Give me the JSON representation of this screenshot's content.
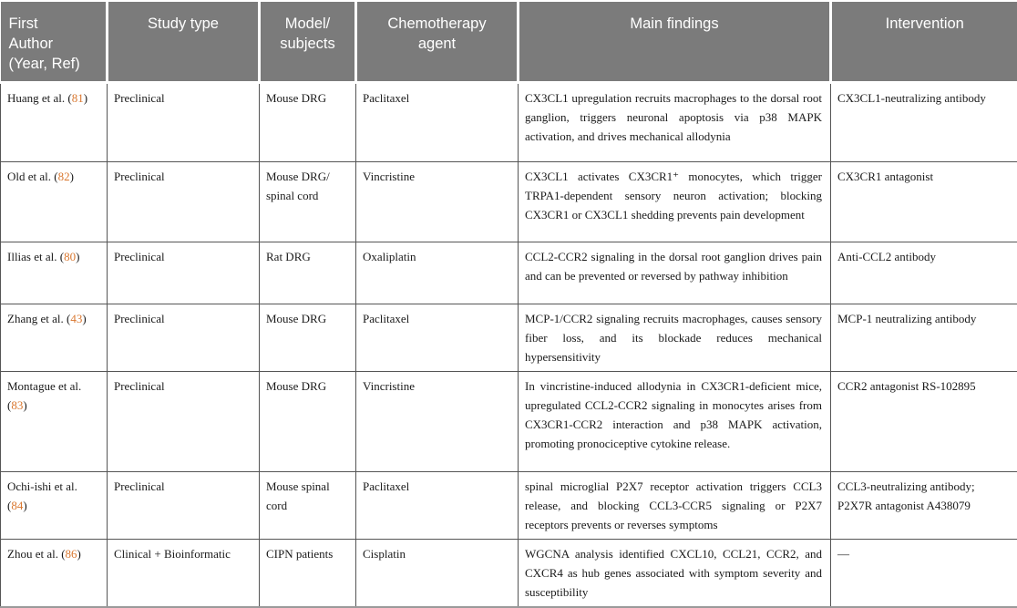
{
  "colors": {
    "header_bg": "#7B7B7B",
    "header_text": "#FFFFFF",
    "ref_accent": "#D9772F",
    "grid_border": "#555555",
    "outer_border": "#9A9A9A"
  },
  "table": {
    "columns": [
      {
        "label": "First\nAuthor\n(Year, Ref)"
      },
      {
        "label": "Study type"
      },
      {
        "label": "Model/\nsubjects"
      },
      {
        "label": "Chemotherapy\nagent"
      },
      {
        "label": "Main findings"
      },
      {
        "label": "Intervention"
      }
    ],
    "rows": [
      {
        "author_prefix": "Huang et al. (",
        "ref": "81",
        "author_suffix": ")",
        "study_type": "Preclinical",
        "model": "Mouse DRG",
        "agent": "Paclitaxel",
        "findings": "CX3CL1 upregulation recruits macrophages to the dorsal root ganglion, triggers neuronal apoptosis via p38 MAPK activation, and drives mechanical allodynia",
        "intervention": "CX3CL1-neutralizing antibody"
      },
      {
        "author_prefix": "Old et al. (",
        "ref": "82",
        "author_suffix": ")",
        "study_type": "Preclinical",
        "model": "Mouse DRG/ spinal cord",
        "agent": "Vincristine",
        "findings": "CX3CL1 activates CX3CR1⁺ monocytes, which trigger TRPA1-dependent sensory neuron activation; blocking CX3CR1 or CX3CL1 shedding prevents pain development",
        "intervention": "CX3CR1 antagonist"
      },
      {
        "author_prefix": "Illias et al. (",
        "ref": "80",
        "author_suffix": ")",
        "study_type": "Preclinical",
        "model": "Rat DRG",
        "agent": "Oxaliplatin",
        "findings": "CCL2-CCR2 signaling in the dorsal root ganglion drives pain and can be prevented or reversed by pathway inhibition",
        "intervention": "Anti-CCL2 antibody"
      },
      {
        "author_prefix": "Zhang et al. (",
        "ref": "43",
        "author_suffix": ")",
        "study_type": "Preclinical",
        "model": "Mouse DRG",
        "agent": "Paclitaxel",
        "findings": "MCP-1/CCR2 signaling recruits macrophages, causes sensory fiber loss, and its blockade reduces mechanical hypersensitivity",
        "intervention": "MCP-1 neutralizing antibody"
      },
      {
        "author_prefix": "Montague et al. (",
        "ref": "83",
        "author_suffix": ")",
        "study_type": "Preclinical",
        "model": "Mouse DRG",
        "agent": "Vincristine",
        "findings": "In vincristine-induced allodynia in CX3CR1-deficient mice, upregulated CCL2-CCR2 signaling in monocytes arises from CX3CR1-CCR2 interaction and p38 MAPK activation, promoting pronociceptive cytokine release.",
        "intervention": "CCR2 antagonist RS-102895"
      },
      {
        "author_prefix": "Ochi-ishi et al. (",
        "ref": "84",
        "author_suffix": ")",
        "study_type": "Preclinical",
        "model": "Mouse spinal cord",
        "agent": "Paclitaxel",
        "findings": "spinal microglial P2X7 receptor activation triggers CCL3 release, and blocking CCL3-CCR5 signaling or P2X7 receptors prevents or reverses symptoms",
        "intervention": "CCL3-neutralizing antibody; P2X7R antagonist A438079"
      },
      {
        "author_prefix": "Zhou et al. (",
        "ref": "86",
        "author_suffix": ")",
        "study_type": "Clinical + Bioinformatic",
        "model": "CIPN patients",
        "agent": "Cisplatin",
        "findings": "WGCNA analysis identified CXCL10, CCL21, CCR2, and CXCR4 as hub genes associated with symptom severity and susceptibility",
        "intervention": "—"
      }
    ]
  }
}
